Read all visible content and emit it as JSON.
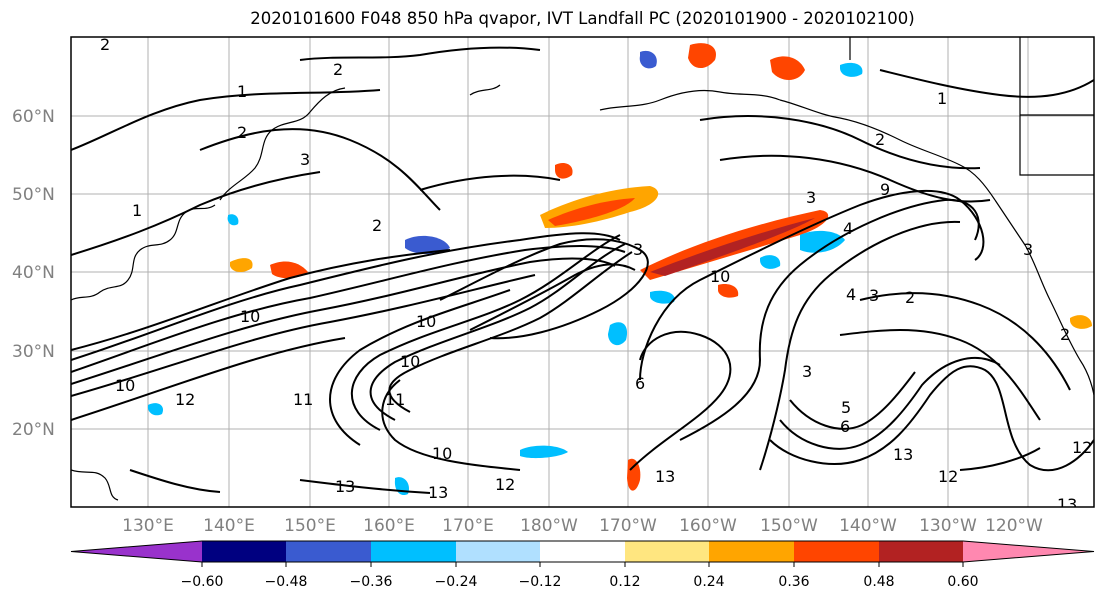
{
  "title": "2020101600 F048 850 hPa qvapor, IVT Landfall PC (2020101900 - 2020102100)",
  "latitude_labels": [
    "60°N",
    "50°N",
    "40°N",
    "30°N",
    "20°N"
  ],
  "longitude_labels": [
    "130°E",
    "140°E",
    "150°E",
    "160°E",
    "170°E",
    "180°W",
    "170°W",
    "160°W",
    "150°W",
    "140°W",
    "130°W",
    "120°W"
  ],
  "colorbar": {
    "tick_labels": [
      "−0.60",
      "−0.48",
      "−0.36",
      "−0.24",
      "−0.12",
      "0.12",
      "0.24",
      "0.36",
      "0.48",
      "0.60"
    ],
    "colors": [
      "#9932cc",
      "#000080",
      "#3a5bd0",
      "#00bfff",
      "#b0e0ff",
      "#ffffff",
      "#ffe680",
      "#ffa500",
      "#ff4500",
      "#b22222",
      "#ff88b0"
    ]
  },
  "contour_labels": [
    "2",
    "2",
    "1",
    "1",
    "2",
    "3",
    "2",
    "1",
    "2",
    "3",
    "3",
    "4",
    "9",
    "3",
    "10",
    "10",
    "10",
    "2",
    "4",
    "3",
    "2",
    "10",
    "10",
    "6",
    "11",
    "11",
    "10",
    "12",
    "13",
    "13",
    "12",
    "13",
    "6",
    "5",
    "3",
    "13",
    "12",
    "13",
    "12"
  ],
  "map_features": [
    "coastlines",
    "graticule",
    "qvapor-anomaly-shading",
    "ivt-contours"
  ]
}
